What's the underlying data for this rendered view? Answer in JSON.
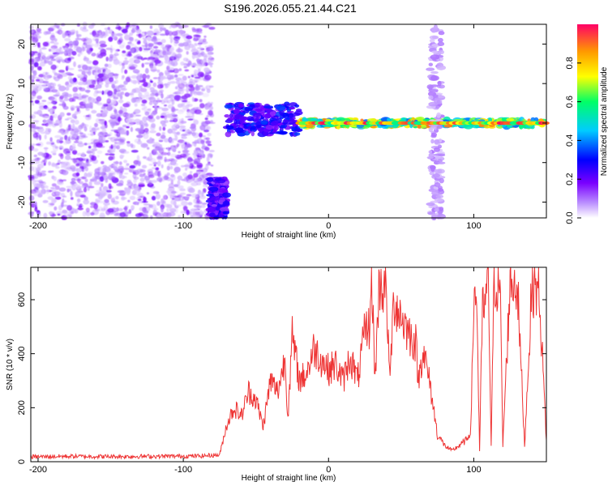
{
  "title": "S196.2026.055.21.44.C21",
  "chart_data": [
    {
      "type": "heatmap",
      "xlabel": "Height of straight line (km)",
      "ylabel": "Frequency (Hz)",
      "xlim": [
        -205,
        150
      ],
      "ylim": [
        -24,
        25
      ],
      "x_ticks": [
        -200,
        -100,
        0,
        100
      ],
      "y_ticks": [
        -20,
        -10,
        0,
        10,
        20
      ],
      "colorbar": {
        "label": "Normalized spectral amplitude",
        "range": [
          0,
          1
        ],
        "ticks": [
          0.0,
          0.2,
          0.4,
          0.6,
          0.8
        ],
        "colors": [
          "#ffffff",
          "#7a00ff",
          "#0000ff",
          "#00ccff",
          "#00ff66",
          "#ffff00",
          "#ff9900",
          "#ff0066"
        ]
      },
      "regions": [
        {
          "x_range": [
            -205,
            -80
          ],
          "freq_range": [
            -24,
            25
          ],
          "amplitude": 0.05,
          "description_class": "noise"
        },
        {
          "x_range": [
            -82,
            -70
          ],
          "freq_range": [
            -24,
            -14
          ],
          "amplitude": 0.3
        },
        {
          "x_range": [
            -70,
            -20
          ],
          "freq_range": [
            -3,
            5
          ],
          "amplitude": 0.35
        },
        {
          "x_range": [
            -20,
            150
          ],
          "freq_range": [
            -1,
            1
          ],
          "amplitude": 0.9
        },
        {
          "x_range": [
            70,
            78
          ],
          "freq_range": [
            -24,
            25
          ],
          "amplitude": 0.1
        }
      ],
      "ridge": {
        "frequency": 0
      }
    },
    {
      "type": "line",
      "xlabel": "Height of straight line (km)",
      "ylabel": "SNR (10 * v/v)",
      "xlim": [
        -205,
        150
      ],
      "ylim": [
        0,
        720
      ],
      "x_ticks": [
        -200,
        -100,
        0,
        100
      ],
      "y_ticks": [
        0,
        200,
        400,
        600
      ],
      "color": "#ee3333",
      "series": [
        {
          "x": [
            -205,
            -180,
            -150,
            -120,
            -90,
            -75,
            -70,
            -65,
            -60,
            -55,
            -50,
            -45,
            -40,
            -35,
            -30,
            -28,
            -25,
            -20,
            -15,
            -10,
            -5,
            0,
            5,
            10,
            15,
            20,
            25,
            28,
            30,
            32,
            35,
            38,
            40,
            42,
            45,
            50,
            55,
            60,
            62,
            65,
            70,
            75,
            80,
            85,
            90,
            95,
            98,
            100,
            102,
            104,
            106,
            108,
            110,
            112,
            114,
            116,
            118,
            120,
            125,
            130,
            135,
            140,
            145,
            150
          ],
          "y": [
            18,
            20,
            19,
            20,
            21,
            25,
            140,
            200,
            170,
            260,
            230,
            130,
            300,
            260,
            380,
            170,
            460,
            300,
            330,
            420,
            380,
            340,
            360,
            300,
            390,
            300,
            480,
            500,
            660,
            300,
            670,
            640,
            620,
            300,
            600,
            540,
            480,
            440,
            300,
            420,
            280,
            100,
            60,
            40,
            60,
            80,
            120,
            600,
            620,
            40,
            560,
            580,
            690,
            60,
            680,
            660,
            680,
            60,
            670,
            660,
            60,
            650,
            640,
            80
          ]
        }
      ]
    }
  ]
}
